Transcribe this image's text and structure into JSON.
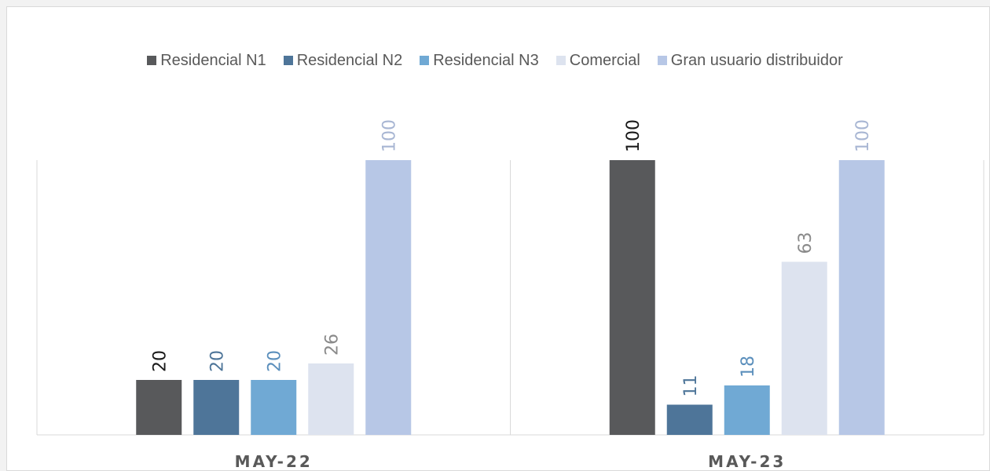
{
  "chart_data": {
    "type": "bar",
    "categories": [
      "MAY-22",
      "MAY-23"
    ],
    "series": [
      {
        "name": "Residencial N1",
        "values": [
          20,
          100
        ],
        "color": "#58595b",
        "label_color": "#1a1a1a"
      },
      {
        "name": "Residencial N2",
        "values": [
          20,
          11
        ],
        "color": "#4e7599",
        "label_color": "#4e7599"
      },
      {
        "name": "Residencial N3",
        "values": [
          20,
          18
        ],
        "color": "#70a9d4",
        "label_color": "#5b8fbc"
      },
      {
        "name": "Comercial",
        "values": [
          26,
          63
        ],
        "color": "#dde3ef",
        "label_color": "#8a8a8a"
      },
      {
        "name": "Gran usuario distribuidor",
        "values": [
          100,
          100
        ],
        "color": "#b7c7e6",
        "label_color": "#a8b6d3"
      }
    ],
    "ylim": [
      0,
      100
    ],
    "grid": false,
    "legend_position": "top",
    "data_labels": true
  }
}
